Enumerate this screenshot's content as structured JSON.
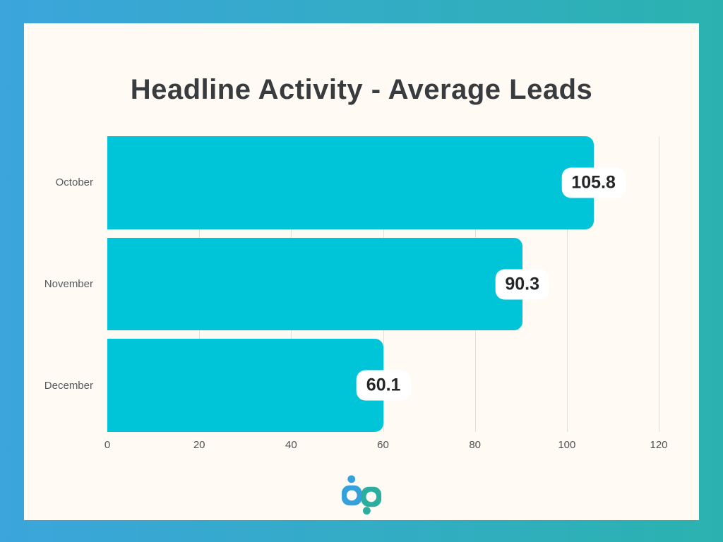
{
  "title": "Headline Activity - Average Leads",
  "colors": {
    "frame_gradient_left": "#3BA5DC",
    "frame_gradient_right": "#2BB2AF",
    "card_background": "#FFFBF4",
    "bar": "#00C4D8",
    "gridline": "#E4DFD6",
    "title_text": "#393C3F",
    "category_text": "#56595C",
    "tick_text": "#4D5054",
    "value_pill_background": "#FFFFFF",
    "value_pill_text": "#232628",
    "logo_blue": "#36A0DC",
    "logo_teal": "#2BAE9E"
  },
  "chart_data": {
    "type": "bar",
    "orientation": "horizontal",
    "title": "Headline Activity - Average Leads",
    "categories": [
      "October",
      "November",
      "December"
    ],
    "values": [
      105.8,
      90.3,
      60.1
    ],
    "value_labels": [
      "105.8",
      "90.3",
      "60.1"
    ],
    "xlabel": "",
    "ylabel": "",
    "xlim": [
      0,
      120
    ],
    "xticks": [
      0,
      20,
      40,
      60,
      80,
      100,
      120
    ],
    "grid": true,
    "legend": "none",
    "bar_color": "#00C4D8"
  },
  "logo": {
    "name": "bp logo mark"
  }
}
